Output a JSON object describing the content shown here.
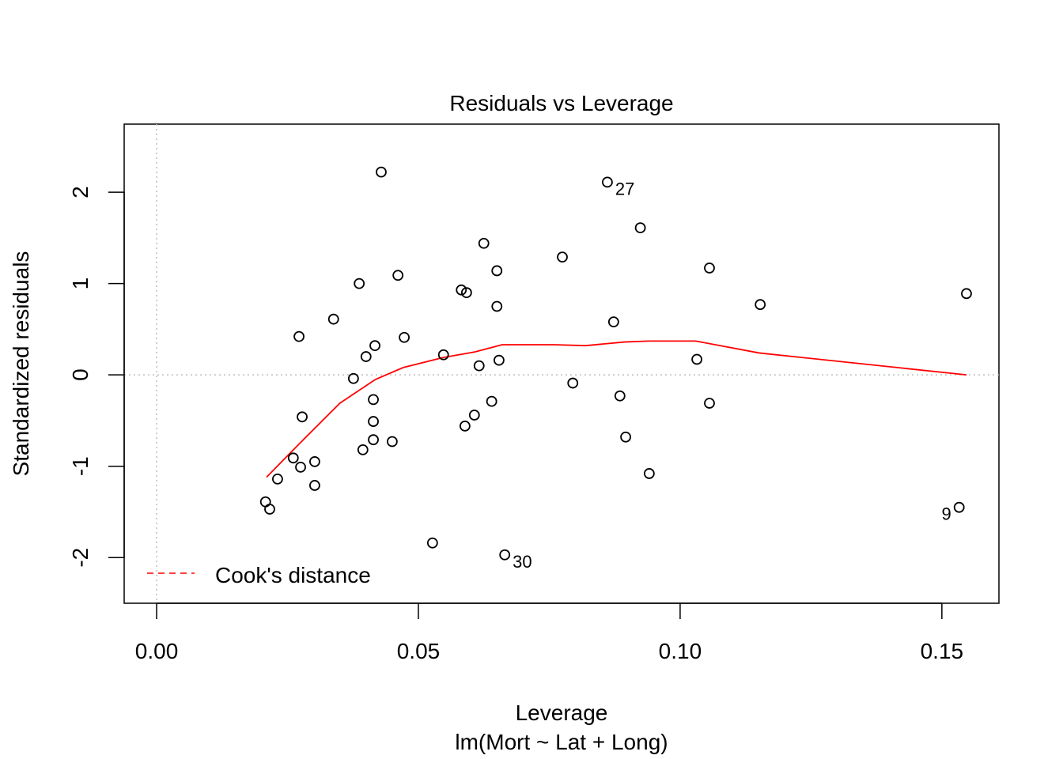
{
  "chart_data": {
    "type": "scatter",
    "title": "Residuals vs Leverage",
    "xlabel": "Leverage",
    "sublabel": "lm(Mort ~ Lat + Long)",
    "ylabel": "Standardized residuals",
    "xlim": [
      -0.0062,
      0.1609
    ],
    "ylim": [
      -2.5,
      2.745
    ],
    "xticks": [
      {
        "v": 0,
        "label": "0.00"
      },
      {
        "v": 0.05,
        "label": "0.05"
      },
      {
        "v": 0.1,
        "label": "0.10"
      },
      {
        "v": 0.15,
        "label": "0.15"
      }
    ],
    "yticks": [
      {
        "v": -2,
        "label": "-2"
      },
      {
        "v": -1,
        "label": "-1"
      },
      {
        "v": 0,
        "label": "0"
      },
      {
        "v": 1,
        "label": "1"
      },
      {
        "v": 2,
        "label": "2"
      }
    ],
    "grid": false,
    "reference_lines": {
      "x": 0,
      "y": 0,
      "style": "dotted",
      "color": "#bebebe"
    },
    "points": [
      {
        "x": 0.0429,
        "y": 2.22
      },
      {
        "x": 0.0861,
        "y": 2.11,
        "label": "27",
        "side": "right"
      },
      {
        "x": 0.0924,
        "y": 1.61
      },
      {
        "x": 0.0625,
        "y": 1.44
      },
      {
        "x": 0.0775,
        "y": 1.29
      },
      {
        "x": 0.065,
        "y": 1.14
      },
      {
        "x": 0.1056,
        "y": 1.17
      },
      {
        "x": 0.0461,
        "y": 1.09
      },
      {
        "x": 0.0387,
        "y": 1.0
      },
      {
        "x": 0.0582,
        "y": 0.93
      },
      {
        "x": 0.0592,
        "y": 0.9
      },
      {
        "x": 0.065,
        "y": 0.75
      },
      {
        "x": 0.1153,
        "y": 0.77
      },
      {
        "x": 0.1547,
        "y": 0.89
      },
      {
        "x": 0.0338,
        "y": 0.61
      },
      {
        "x": 0.0873,
        "y": 0.58
      },
      {
        "x": 0.0272,
        "y": 0.42
      },
      {
        "x": 0.0473,
        "y": 0.41
      },
      {
        "x": 0.0417,
        "y": 0.32
      },
      {
        "x": 0.04,
        "y": 0.2
      },
      {
        "x": 0.0548,
        "y": 0.22
      },
      {
        "x": 0.0654,
        "y": 0.16
      },
      {
        "x": 0.0616,
        "y": 0.1
      },
      {
        "x": 0.1032,
        "y": 0.17
      },
      {
        "x": 0.0376,
        "y": -0.04
      },
      {
        "x": 0.0795,
        "y": -0.09
      },
      {
        "x": 0.0414,
        "y": -0.27
      },
      {
        "x": 0.0885,
        "y": -0.23
      },
      {
        "x": 0.064,
        "y": -0.29
      },
      {
        "x": 0.1056,
        "y": -0.31
      },
      {
        "x": 0.0278,
        "y": -0.46
      },
      {
        "x": 0.0607,
        "y": -0.44
      },
      {
        "x": 0.0414,
        "y": -0.51
      },
      {
        "x": 0.0589,
        "y": -0.56
      },
      {
        "x": 0.0414,
        "y": -0.71
      },
      {
        "x": 0.045,
        "y": -0.73
      },
      {
        "x": 0.0896,
        "y": -0.68
      },
      {
        "x": 0.0394,
        "y": -0.82
      },
      {
        "x": 0.0261,
        "y": -0.91
      },
      {
        "x": 0.0302,
        "y": -0.95
      },
      {
        "x": 0.0275,
        "y": -1.01
      },
      {
        "x": 0.0941,
        "y": -1.08
      },
      {
        "x": 0.0231,
        "y": -1.14
      },
      {
        "x": 0.0302,
        "y": -1.21
      },
      {
        "x": 0.0208,
        "y": -1.39
      },
      {
        "x": 0.0216,
        "y": -1.47
      },
      {
        "x": 0.1533,
        "y": -1.45,
        "label": "9",
        "side": "left"
      },
      {
        "x": 0.0527,
        "y": -1.84
      },
      {
        "x": 0.0665,
        "y": -1.97,
        "label": "30",
        "side": "right"
      }
    ],
    "smooth_line": {
      "color": "#ff0000",
      "points": [
        [
          0.021,
          -1.12
        ],
        [
          0.0275,
          -0.74
        ],
        [
          0.035,
          -0.31
        ],
        [
          0.0418,
          -0.05
        ],
        [
          0.0471,
          0.08
        ],
        [
          0.0547,
          0.19
        ],
        [
          0.0607,
          0.25
        ],
        [
          0.066,
          0.33
        ],
        [
          0.0758,
          0.33
        ],
        [
          0.0819,
          0.32
        ],
        [
          0.0894,
          0.36
        ],
        [
          0.094,
          0.37
        ],
        [
          0.103,
          0.37
        ],
        [
          0.1151,
          0.24
        ],
        [
          0.1547,
          0.0
        ]
      ]
    },
    "legend": {
      "label": "Cook's distance",
      "color": "#ff0000",
      "style": "dashed",
      "placement": "bottom-left"
    }
  }
}
